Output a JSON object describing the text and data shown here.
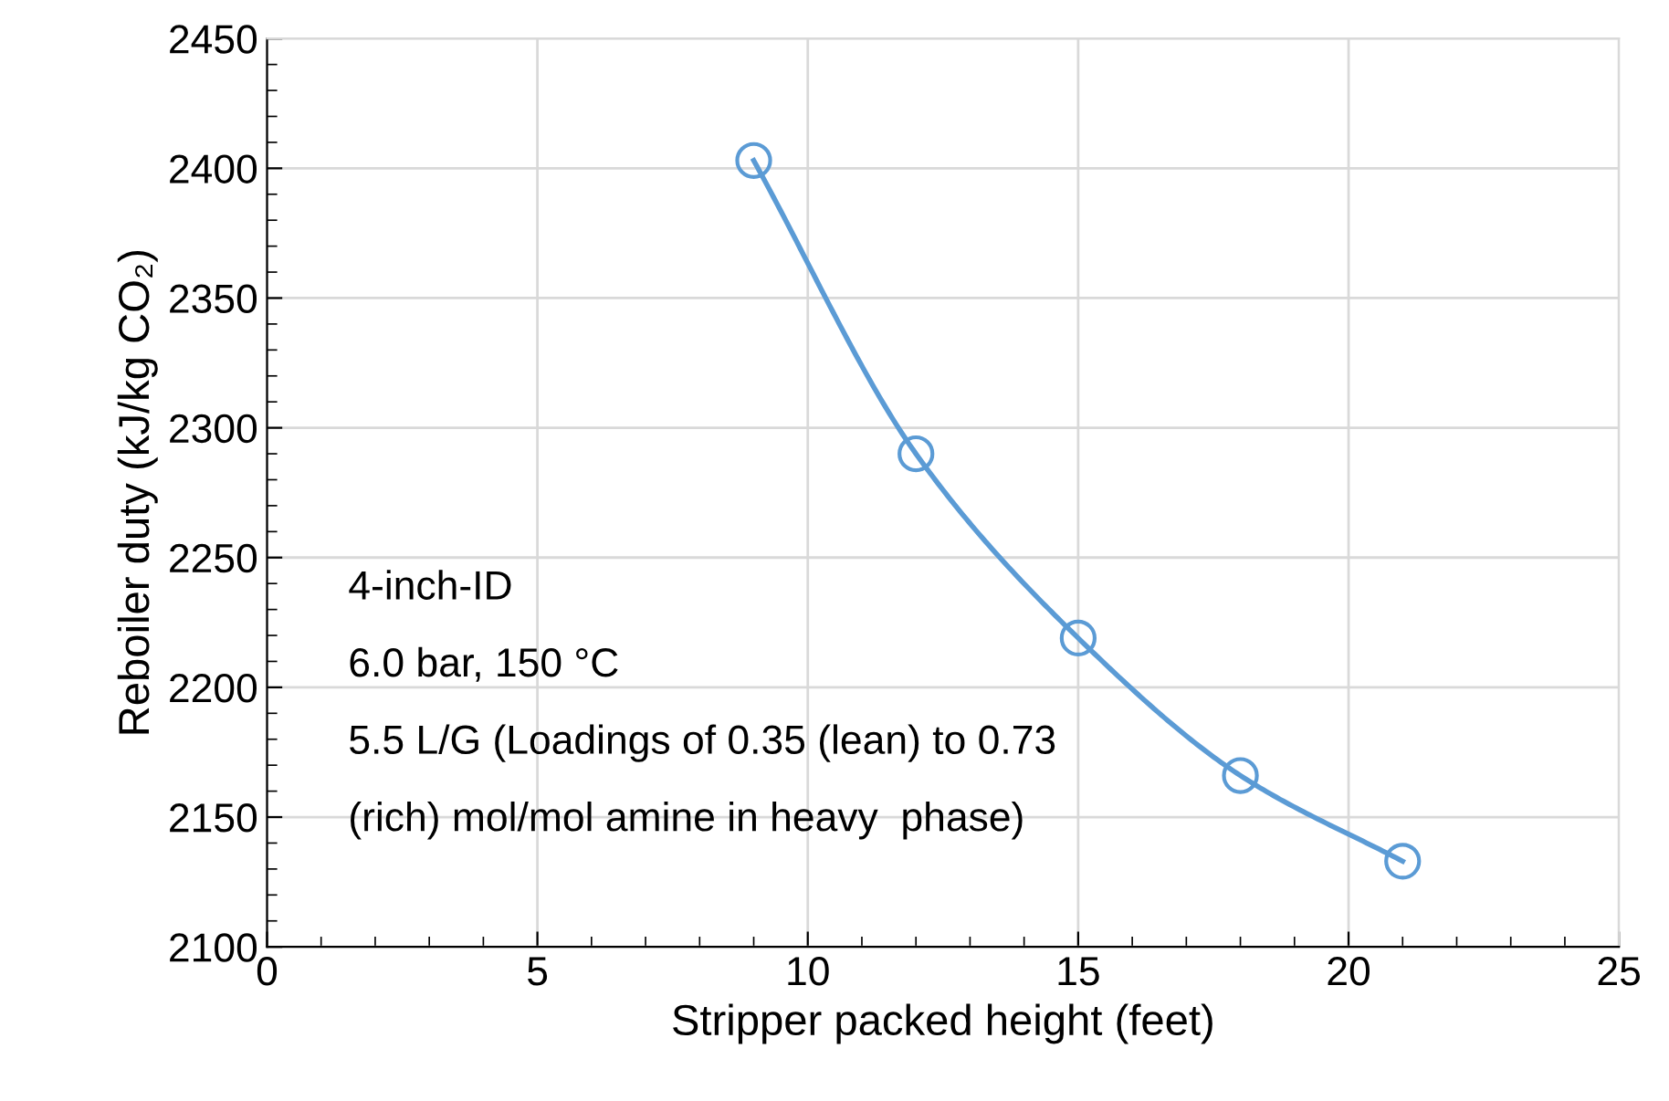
{
  "chart_data": {
    "type": "line",
    "xlabel": "Stripper packed height (feet)",
    "ylabel": "Reboiler duty (kJ/kg CO₂)",
    "x": [
      9,
      12,
      15,
      18,
      21
    ],
    "series": [
      {
        "color": "#5b9bd5",
        "values": [
          2403,
          2290,
          2219,
          2166,
          2133
        ]
      }
    ],
    "xlim": [
      0,
      25
    ],
    "xticks": [
      0,
      5,
      10,
      15,
      20,
      25
    ],
    "ylim": [
      2100,
      2450
    ],
    "yticks": [
      2100,
      2150,
      2200,
      2250,
      2300,
      2350,
      2400,
      2450
    ],
    "grid": true,
    "marker": "circle",
    "line_style": "solid",
    "annotations": [
      "4-inch-ID",
      "6.0 bar, 150 °C",
      "5.5 L/G (Loadings of 0.35 (lean) to 0.73",
      "(rich) mol/mol amine in heavy  phase)"
    ]
  }
}
